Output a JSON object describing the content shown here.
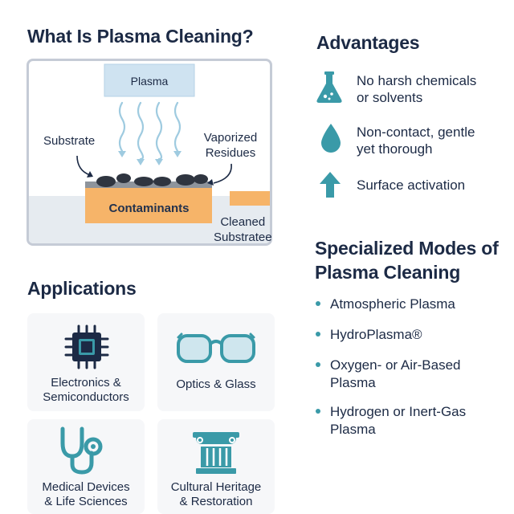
{
  "left": {
    "title": "What Is Plasma Cleaning?",
    "diagram": {
      "plasma": "Plasma",
      "substrate": "Substrate",
      "vaporized": [
        "Vaporized",
        "Residues"
      ],
      "contaminants": "Contaminants",
      "cleaned": [
        "Cleaned",
        "Substratee"
      ]
    }
  },
  "advantages": {
    "title": "Advantages",
    "items": [
      {
        "icon": "flask-icon",
        "lines": [
          "No harsh chemicals",
          "or solvents"
        ]
      },
      {
        "icon": "droplet-icon",
        "lines": [
          "Non-contact, gentle",
          "yet thorough"
        ]
      },
      {
        "icon": "arrow-up-icon",
        "lines": [
          "Surface activation"
        ]
      }
    ]
  },
  "modes": {
    "title": "Specialized Modes of Plasma Cleaning",
    "items": [
      "Atmospheric Plasma",
      "HydroPlasma®",
      "Oxygen- or Air-Based Plasma",
      "Hydrogen or Inert-Gas Plasma"
    ]
  },
  "applications": {
    "title": "Applications",
    "cards": [
      {
        "icon": "chip-icon",
        "lines": [
          "Electronics &",
          "Semiconductors"
        ]
      },
      {
        "icon": "glasses-icon",
        "lines": [
          "Optics & Glass"
        ]
      },
      {
        "icon": "stethoscope-icon",
        "lines": [
          "Medical Devices",
          "& Life Sciences"
        ]
      },
      {
        "icon": "column-icon",
        "lines": [
          "Cultural Heritage",
          "& Restoration"
        ]
      }
    ]
  },
  "colors": {
    "accent": "#3a9aa8",
    "plasma_box": "#cfe3f1",
    "contaminant_layer": "#f6b469",
    "title": "#1c2a45"
  }
}
